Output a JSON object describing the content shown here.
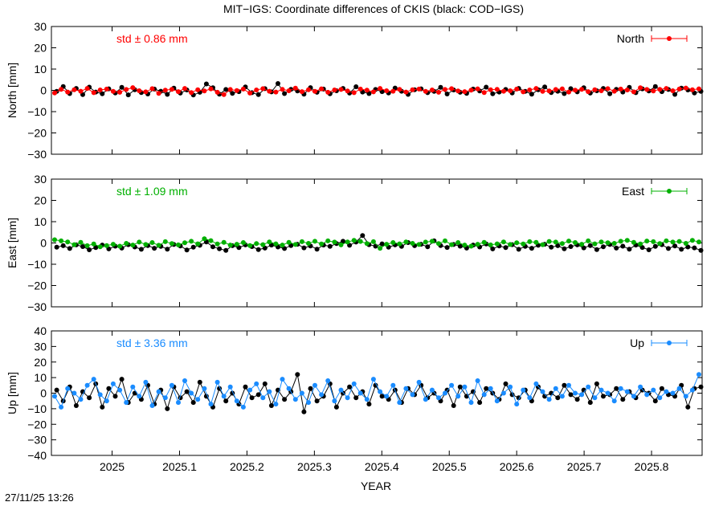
{
  "chart_data": {
    "type": "scatter",
    "title": "MIT−IGS: Coordinate differences of CKIS (black: COD−IGS)",
    "xlabel": "YEAR",
    "xlim": [
      2024.91,
      2025.875
    ],
    "xticks": [
      2025,
      2025.1,
      2025.2,
      2025.3,
      2025.4,
      2025.5,
      2025.6,
      2025.7,
      2025.8
    ],
    "xtick_labels": [
      "2025",
      "2025.1",
      "2025.2",
      "2025.3",
      "2025.4",
      "2025.5",
      "2025.6",
      "2025.7",
      "2025.8"
    ],
    "grid": false,
    "panels": [
      {
        "ylabel": "North [mm]",
        "ylim": [
          -30,
          30
        ],
        "yticks": [
          30,
          20,
          10,
          0,
          -10,
          -20,
          -30
        ],
        "ytick_labels": [
          "30",
          "20",
          "10",
          "0",
          "−10",
          "−20",
          "−30"
        ],
        "std_label": "std ± 0.86 mm",
        "legend": "North",
        "color": "#ff0000",
        "series": [
          {
            "name": "MIT−IGS",
            "color": "#ff0000",
            "values": [
              -1.2,
              0.5,
              -0.8,
              0.3,
              -0.4,
              0.9,
              -1.1,
              0.2,
              0.6,
              -0.5,
              -0.9,
              0.4,
              1.3,
              -0.2,
              -0.7,
              0.8,
              -1.4,
              0.1,
              0.5,
              -0.6,
              0.9,
              -1.0,
              0.3,
              -0.3,
              0.7,
              -0.9,
              -2.0,
              0.4,
              -0.1,
              0.6,
              -1.3,
              0.2,
              0.8,
              -0.4,
              -0.8,
              0.5,
              -0.2,
              1.0,
              -0.6,
              0.3,
              -0.5,
              0.7,
              -0.9,
              0.2,
              0.4,
              -0.3,
              -1.1,
              0.6,
              0.1,
              -0.7,
              0.9,
              -0.2,
              -0.4,
              0.5,
              -0.8,
              0.3,
              0.6,
              -0.5,
              0.2,
              -0.9,
              0.4,
              0.8,
              -0.3,
              -0.6,
              0.1,
              0.7,
              -1.0,
              0.3,
              0.5,
              -0.4,
              -0.2,
              0.6,
              -0.7,
              0.2,
              0.9,
              -0.5,
              -0.3,
              0.4,
              0.7,
              -0.8,
              0.1,
              0.5,
              -0.6,
              0.3,
              -0.2,
              0.8,
              -0.4,
              0.6,
              0.2,
              -0.7,
              1.2,
              0.4,
              -0.3,
              0.5,
              0.9,
              -0.2,
              0.6,
              1.1,
              0.3,
              0.7
            ]
          },
          {
            "name": "COD−IGS",
            "color": "#000000",
            "values": [
              -0.5,
              1.8,
              -1.5,
              0.9,
              -2.0,
              1.5,
              -0.8,
              -1.6,
              0.7,
              -1.2,
              1.4,
              -2.1,
              0.3,
              -1.0,
              -1.7,
              0.6,
              -0.4,
              -1.9,
              1.0,
              -1.3,
              0.2,
              -2.2,
              -0.9,
              3.0,
              1.2,
              -1.8,
              0.4,
              -1.4,
              -0.6,
              1.6,
              -1.1,
              -2.0,
              0.8,
              -0.7,
              3.2,
              -1.5,
              0.5,
              -0.3,
              -1.8,
              1.3,
              -0.9,
              0.6,
              -1.6,
              -0.2,
              0.9,
              -1.3,
              1.7,
              -0.8,
              -1.5,
              0.4,
              -0.6,
              -1.2,
              1.1,
              -0.4,
              -1.9,
              0.3,
              0.7,
              -1.1,
              -0.5,
              1.4,
              -1.7,
              0.2,
              -0.9,
              -1.4,
              0.6,
              -0.3,
              1.5,
              -1.6,
              -0.8,
              0.4,
              -1.2,
              0.9,
              -0.5,
              -1.8,
              0.3,
              1.6,
              -1.0,
              -0.4,
              -1.5,
              0.8,
              -0.7,
              1.2,
              -1.3,
              -0.2,
              0.9,
              -1.6,
              0.5,
              -0.8,
              1.4,
              -1.1,
              0.7,
              -0.3,
              1.8,
              -0.6,
              0.4,
              -1.9,
              1.0,
              0.2,
              -1.2,
              -0.5
            ]
          }
        ]
      },
      {
        "ylabel": "East [mm]",
        "ylim": [
          -30,
          30
        ],
        "yticks": [
          30,
          20,
          10,
          0,
          -10,
          -20,
          -30
        ],
        "ytick_labels": [
          "30",
          "20",
          "10",
          "0",
          "−10",
          "−20",
          "−30"
        ],
        "std_label": "std ± 1.09 mm",
        "legend": "East",
        "color": "#00b000",
        "series": [
          {
            "name": "MIT−IGS",
            "color": "#00b000",
            "values": [
              1.5,
              1.0,
              0.5,
              -0.8,
              0.3,
              -1.3,
              -0.5,
              -1.8,
              -1.2,
              -0.6,
              -1.5,
              -0.2,
              -1.0,
              0.4,
              -0.7,
              0.2,
              -1.1,
              0.6,
              -0.3,
              -0.9,
              0.1,
              0.8,
              -0.4,
              2.0,
              1.1,
              -0.5,
              0.3,
              -1.0,
              -0.6,
              0.2,
              -1.2,
              -0.3,
              -0.8,
              0.5,
              -0.4,
              -1.0,
              0.3,
              -0.7,
              0.6,
              -0.2,
              0.8,
              -0.5,
              1.0,
              0.4,
              -0.9,
              0.5,
              1.2,
              0.7,
              -0.3,
              0.6,
              -2.5,
              -0.6,
              0.2,
              -0.4,
              0.5,
              -0.2,
              -0.7,
              0.4,
              0.8,
              -0.3,
              1.0,
              -0.8,
              0.2,
              -1.0,
              -1.5,
              -0.6,
              0.3,
              -0.9,
              -0.4,
              0.5,
              -0.7,
              0.1,
              -0.5,
              0.6,
              0.3,
              -0.8,
              0.7,
              0.4,
              -0.3,
              0.9,
              0.2,
              -0.6,
              1.0,
              -0.4,
              0.5,
              0.1,
              -0.2,
              0.8,
              1.2,
              0.3,
              -0.5,
              0.9,
              0.6,
              -0.3,
              1.0,
              0.4,
              0.7,
              -0.2,
              1.2,
              0.5
            ]
          },
          {
            "name": "COD−IGS",
            "color": "#000000",
            "values": [
              -2.0,
              -1.3,
              -2.6,
              -0.9,
              -1.7,
              -3.2,
              -2.2,
              -1.0,
              -2.8,
              -1.5,
              -2.4,
              -0.8,
              -1.9,
              -3.0,
              -1.2,
              -2.5,
              -1.6,
              -2.9,
              -0.7,
              -1.4,
              -3.3,
              -2.0,
              -1.1,
              0.5,
              -1.8,
              -2.7,
              -3.5,
              -1.3,
              -2.2,
              -0.9,
              -1.7,
              -3.1,
              -2.4,
              -1.0,
              -1.9,
              -2.6,
              -1.2,
              -0.6,
              -2.3,
              -1.4,
              -2.9,
              -1.0,
              -1.6,
              -0.3,
              0.8,
              -1.1,
              0.4,
              3.5,
              -0.8,
              -1.5,
              -0.4,
              -2.0,
              -0.9,
              -1.6,
              0.2,
              -1.3,
              -0.6,
              -1.8,
              1.0,
              -1.2,
              -2.1,
              -0.7,
              -1.5,
              -2.4,
              -1.0,
              -1.9,
              -0.5,
              -2.8,
              -1.4,
              -2.2,
              -0.8,
              -3.0,
              -1.6,
              -2.5,
              -1.1,
              -0.6,
              -2.0,
              -1.3,
              -2.7,
              -1.7,
              -0.9,
              -2.3,
              -1.2,
              -3.1,
              -1.8,
              -0.7,
              -2.4,
              -1.5,
              -2.9,
              -1.0,
              -2.1,
              -3.2,
              -1.6,
              -0.8,
              -2.6,
              -1.4,
              -3.0,
              -1.9,
              -2.3,
              -3.5
            ]
          }
        ]
      },
      {
        "ylabel": "Up [mm]",
        "ylim": [
          -40,
          40
        ],
        "yticks": [
          40,
          30,
          20,
          10,
          0,
          -10,
          -20,
          -30,
          -40
        ],
        "ytick_labels": [
          "40",
          "30",
          "20",
          "10",
          "0",
          "−10",
          "−20",
          "−30",
          "−40"
        ],
        "std_label": "std ± 3.36 mm",
        "legend": "Up",
        "color": "#1a8cff",
        "series": [
          {
            "name": "MIT−IGS",
            "color": "#1a8cff",
            "values": [
              -2,
              -9,
              3,
              0,
              -4,
              5,
              9,
              -1,
              -5,
              6,
              2,
              -6,
              4,
              -2,
              7,
              -8,
              1,
              -3,
              5,
              -6,
              8,
              0,
              -4,
              3,
              -7,
              7,
              -2,
              4,
              -5,
              -9,
              2,
              6,
              -3,
              1,
              -7,
              9,
              3,
              -4,
              0,
              -6,
              5,
              -1,
              8,
              -5,
              2,
              -3,
              6,
              0,
              -4,
              9,
              1,
              -2,
              5,
              -6,
              3,
              -1,
              7,
              -4,
              2,
              -3,
              0,
              5,
              -2,
              4,
              -6,
              8,
              -1,
              3,
              -5,
              0,
              4,
              -7,
              2,
              -3,
              6,
              1,
              -4,
              3,
              -2,
              5,
              0,
              -1,
              4,
              -3,
              2,
              0,
              -5,
              3,
              1,
              -2,
              4,
              -1,
              2,
              -3,
              1,
              0,
              3,
              -2,
              2,
              12
            ]
          },
          {
            "name": "COD−IGS",
            "color": "#000000",
            "values": [
              2,
              -5,
              4,
              -8,
              1,
              -3,
              6,
              -9,
              3,
              -2,
              9,
              -6,
              0,
              -4,
              5,
              -7,
              2,
              -10,
              4,
              -3,
              1,
              -6,
              7,
              -2,
              -9,
              3,
              -5,
              0,
              -7,
              4,
              -3,
              -1,
              6,
              -8,
              2,
              -4,
              1,
              12,
              -12,
              3,
              -5,
              -2,
              6,
              -9,
              0,
              4,
              -3,
              1,
              -7,
              5,
              -2,
              -4,
              2,
              -6,
              3,
              -1,
              5,
              -3,
              0,
              -5,
              2,
              -8,
              4,
              -2,
              1,
              -6,
              3,
              0,
              -4,
              6,
              -1,
              -3,
              2,
              -5,
              4,
              -2,
              0,
              -3,
              5,
              -1,
              -4,
              2,
              -6,
              6,
              -2,
              -1,
              3,
              -4,
              1,
              -3,
              2,
              0,
              -5,
              3,
              -1,
              -2,
              5,
              -9,
              3,
              4
            ]
          }
        ]
      }
    ],
    "timestamp": "27/11/25 13:26"
  }
}
